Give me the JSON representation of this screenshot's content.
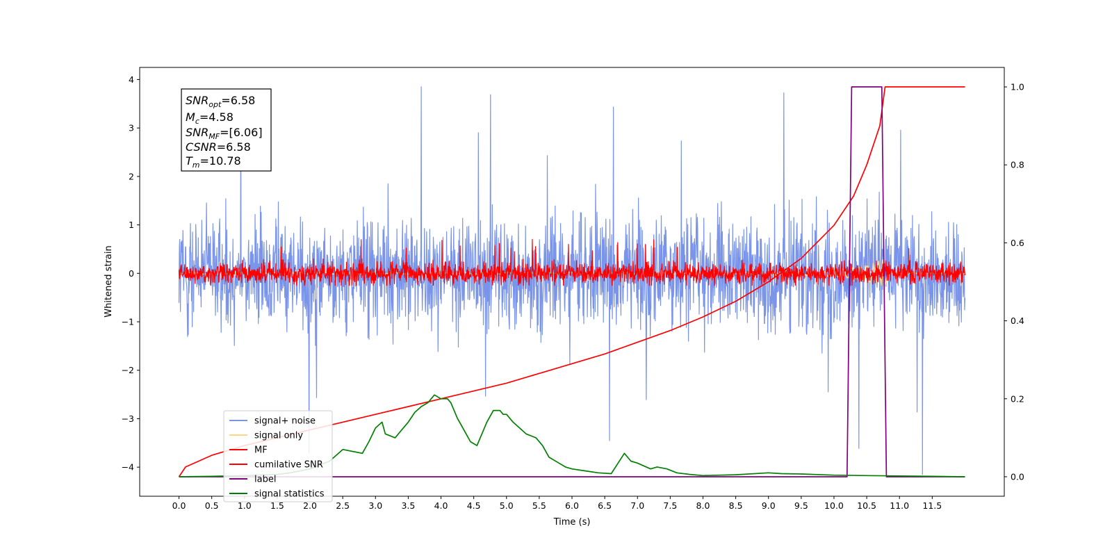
{
  "chart_data": {
    "type": "line",
    "xlabel": "Time (s)",
    "ylabel": "Whitened strain",
    "xlim": [
      -0.6,
      12.6
    ],
    "ylim": [
      -4.6,
      4.25
    ],
    "y2lim": [
      -0.05,
      1.05
    ],
    "x_ticks": [
      0.0,
      0.5,
      1.0,
      1.5,
      2.0,
      2.5,
      3.0,
      3.5,
      4.0,
      4.5,
      5.0,
      5.5,
      6.0,
      6.5,
      7.0,
      7.5,
      8.0,
      8.5,
      9.0,
      9.5,
      10.0,
      10.5,
      11.0,
      11.5
    ],
    "x_tick_labels": [
      "0.0",
      "0.5",
      "1.0",
      "1.5",
      "2.0",
      "2.5",
      "3.0",
      "3.5",
      "4.0",
      "4.5",
      "5.0",
      "5.5",
      "6.0",
      "6.5",
      "7.0",
      "7.5",
      "8.0",
      "8.5",
      "9.0",
      "9.5",
      "10.0",
      "10.5",
      "11.0",
      "11.5"
    ],
    "y_ticks": [
      -4,
      -3,
      -2,
      -1,
      0,
      1,
      2,
      3,
      4
    ],
    "y_tick_labels": [
      "−4",
      "−3",
      "−2",
      "−1",
      "0",
      "1",
      "2",
      "3",
      "4"
    ],
    "y2_ticks": [
      0.0,
      0.2,
      0.4,
      0.6,
      0.8,
      1.0
    ],
    "y2_tick_labels": [
      "0.0",
      "0.2",
      "0.4",
      "0.6",
      "0.8",
      "1.0"
    ],
    "legend_position": "lower-left",
    "annotation": {
      "snr_opt": {
        "base": "SNR",
        "sub": "opt",
        "value": "=6.58"
      },
      "mc": {
        "base": "M",
        "sub": "c",
        "value": "=4.58"
      },
      "snr_mf": {
        "base": "SNR",
        "sub": "MF",
        "value": "=[6.06]"
      },
      "csnr": {
        "base": "CSNR",
        "value": "=6.58"
      },
      "tm": {
        "base": "T",
        "sub": "m",
        "value": "=10.78"
      }
    },
    "series": [
      {
        "name": "signal+ noise",
        "color": "#7994e8",
        "axis": "left",
        "style": "noise",
        "x_range": [
          0,
          12
        ],
        "spread": 0.8,
        "max": 3.85,
        "min": -4.15
      },
      {
        "name": "signal only",
        "color": "#fdd68a",
        "axis": "left",
        "style": "chirp",
        "x_range": [
          0,
          12
        ],
        "peak_time": 10.78
      },
      {
        "name": "MF",
        "color": "#ff0000",
        "axis": "left",
        "style": "noise",
        "x_range": [
          0,
          12
        ],
        "spread": 0.15,
        "max": 1.0,
        "min": -0.25
      },
      {
        "name": "cumilative SNR",
        "color": "#ff0000",
        "axis": "right",
        "x": [
          0.0,
          0.1,
          0.5,
          1.0,
          1.5,
          2.0,
          2.5,
          3.0,
          3.5,
          4.0,
          4.5,
          5.0,
          5.5,
          6.0,
          6.5,
          7.0,
          7.5,
          8.0,
          8.5,
          9.0,
          9.5,
          10.0,
          10.3,
          10.5,
          10.7,
          10.78,
          11.5,
          12.0
        ],
        "y": [
          0.0,
          0.025,
          0.055,
          0.08,
          0.1,
          0.12,
          0.14,
          0.16,
          0.18,
          0.2,
          0.22,
          0.24,
          0.265,
          0.29,
          0.315,
          0.345,
          0.375,
          0.41,
          0.45,
          0.5,
          0.56,
          0.645,
          0.72,
          0.8,
          0.9,
          1.0,
          1.0,
          1.0
        ]
      },
      {
        "name": "label",
        "color": "#800080",
        "axis": "right",
        "x": [
          0.0,
          10.2,
          10.27,
          10.73,
          10.8,
          12.0
        ],
        "y": [
          0.0,
          0.0,
          1.0,
          1.0,
          0.0,
          0.0
        ]
      },
      {
        "name": "signal statistics",
        "color": "#008000",
        "axis": "right",
        "x": [
          0.0,
          0.5,
          1.0,
          1.5,
          1.7,
          2.0,
          2.3,
          2.5,
          2.8,
          2.9,
          3.0,
          3.1,
          3.15,
          3.3,
          3.4,
          3.5,
          3.6,
          3.7,
          3.8,
          3.9,
          4.0,
          4.05,
          4.1,
          4.15,
          4.25,
          4.35,
          4.45,
          4.55,
          4.7,
          4.8,
          4.9,
          4.95,
          5.0,
          5.1,
          5.2,
          5.3,
          5.45,
          5.55,
          5.65,
          5.8,
          5.9,
          6.0,
          6.2,
          6.4,
          6.6,
          6.8,
          6.9,
          7.0,
          7.2,
          7.3,
          7.45,
          7.6,
          7.8,
          8.0,
          8.5,
          9.0,
          9.2,
          9.5,
          10.0,
          10.5,
          11.0,
          11.5,
          12.0
        ],
        "y": [
          0.0,
          0.001,
          0.003,
          0.006,
          0.01,
          0.02,
          0.04,
          0.07,
          0.06,
          0.09,
          0.125,
          0.14,
          0.11,
          0.1,
          0.12,
          0.14,
          0.165,
          0.18,
          0.19,
          0.21,
          0.2,
          0.2,
          0.2,
          0.19,
          0.15,
          0.12,
          0.09,
          0.08,
          0.14,
          0.17,
          0.17,
          0.16,
          0.16,
          0.14,
          0.125,
          0.11,
          0.1,
          0.08,
          0.05,
          0.035,
          0.025,
          0.02,
          0.015,
          0.01,
          0.008,
          0.06,
          0.04,
          0.035,
          0.02,
          0.025,
          0.02,
          0.01,
          0.006,
          0.003,
          0.005,
          0.01,
          0.008,
          0.007,
          0.004,
          0.003,
          0.002,
          0.001,
          0.0
        ]
      }
    ]
  }
}
